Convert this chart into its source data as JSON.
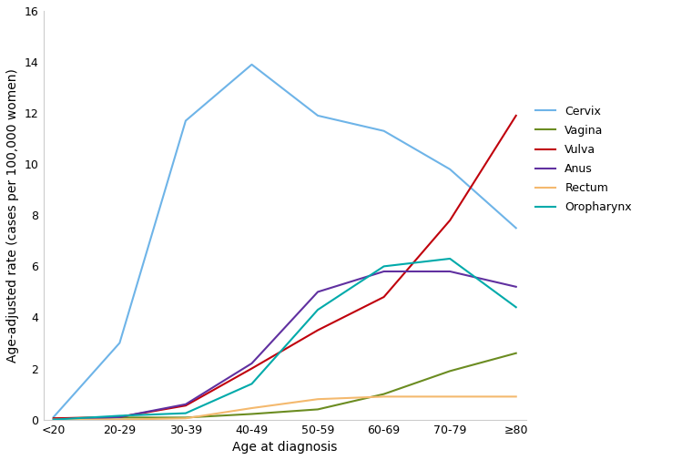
{
  "x_labels": [
    "<20",
    "20-29",
    "30-39",
    "40-49",
    "50-59",
    "60-69",
    "70-79",
    "≥80"
  ],
  "series": {
    "Cervix": [
      0.1,
      3.0,
      11.7,
      13.9,
      11.9,
      11.3,
      9.8,
      7.5
    ],
    "Vagina": [
      0.05,
      0.08,
      0.08,
      0.22,
      0.4,
      1.0,
      1.9,
      2.6
    ],
    "Vulva": [
      0.05,
      0.1,
      0.55,
      2.0,
      3.5,
      4.8,
      7.8,
      11.9
    ],
    "Anus": [
      0.0,
      0.1,
      0.6,
      2.2,
      5.0,
      5.8,
      5.8,
      5.2
    ],
    "Rectum": [
      0.0,
      0.0,
      0.05,
      0.45,
      0.8,
      0.9,
      0.9,
      0.9
    ],
    "Oropharynx": [
      0.0,
      0.15,
      0.25,
      1.4,
      4.3,
      6.0,
      6.3,
      4.4
    ]
  },
  "colors": {
    "Cervix": "#6EB4E8",
    "Vagina": "#6B8C21",
    "Vulva": "#C0000C",
    "Anus": "#6030A0",
    "Rectum": "#F4B96E",
    "Oropharynx": "#00AAAA"
  },
  "ylabel": "Age-adjusted rate (cases per 100,000 women)",
  "xlabel": "Age at diagnosis",
  "ylim": [
    0,
    16
  ],
  "yticks": [
    0,
    2,
    4,
    6,
    8,
    10,
    12,
    14,
    16
  ],
  "axis_fontsize": 10,
  "legend_fontsize": 9,
  "tick_fontsize": 9
}
